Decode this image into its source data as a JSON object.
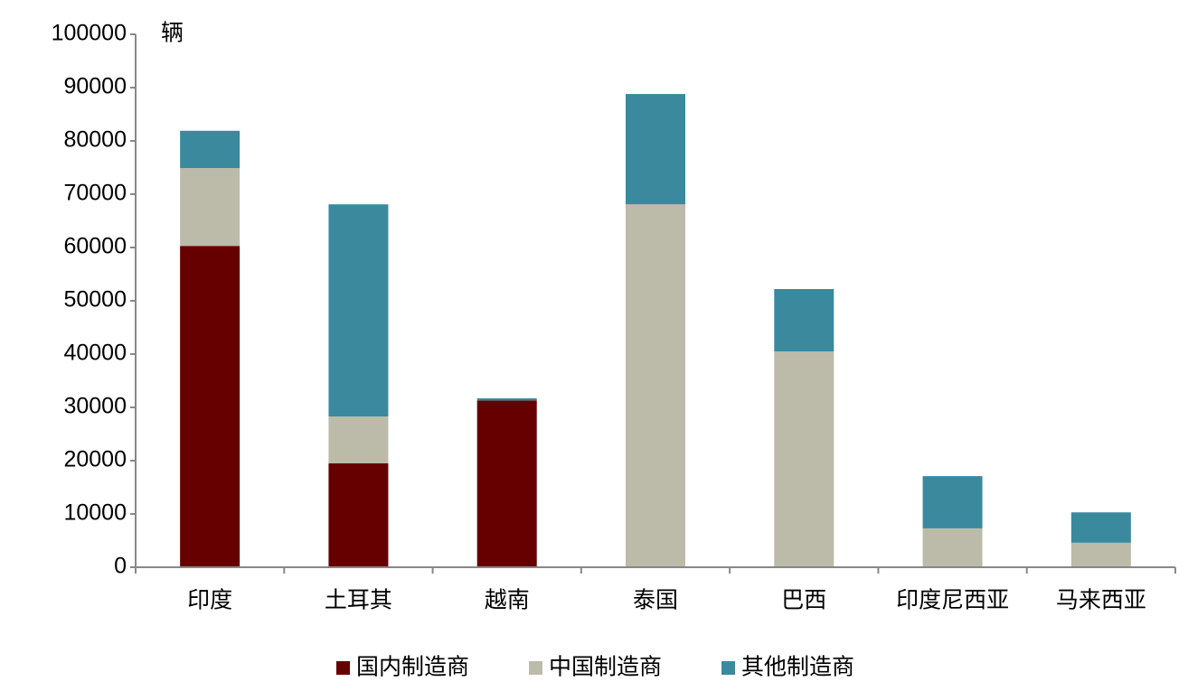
{
  "chart_data": {
    "type": "stacked_bar",
    "y_unit_label": "辆",
    "categories": [
      "印度",
      "土耳其",
      "越南",
      "泰国",
      "巴西",
      "印度尼西亚",
      "马来西亚"
    ],
    "series": [
      {
        "name": "国内制造商",
        "color": "#660000",
        "values": [
          60300,
          19500,
          31300,
          0,
          0,
          0,
          0
        ]
      },
      {
        "name": "中国制造商",
        "color": "#bcbaa9",
        "values": [
          14600,
          8800,
          0,
          68100,
          40500,
          7300,
          4600
        ]
      },
      {
        "name": "其他制造商",
        "color": "#3a899d",
        "values": [
          7000,
          39800,
          400,
          20700,
          11700,
          9800,
          5700
        ]
      }
    ],
    "ylim": [
      0,
      100000
    ],
    "yticks": [
      0,
      10000,
      20000,
      30000,
      40000,
      50000,
      60000,
      70000,
      80000,
      90000,
      100000
    ],
    "legend": "bottom"
  }
}
